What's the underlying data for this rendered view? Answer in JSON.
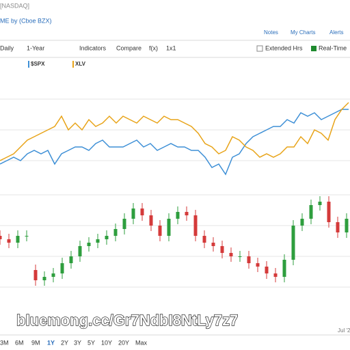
{
  "header": {
    "exchange": "[NASDAQ]",
    "source": "ME by (Cboe BZX)",
    "links": [
      "Notes",
      "My Charts",
      "Alerts"
    ]
  },
  "toolbar": {
    "items": [
      "Daily",
      "1-Year",
      "Indicators",
      "Compare",
      "f(x)",
      "1x1"
    ],
    "extended": "Extended Hrs",
    "realtime": "Real-Time"
  },
  "chart_data": [
    {
      "type": "line",
      "ylim": [
        0,
        120
      ],
      "series": [
        {
          "name": "$SPX",
          "color": "#3d8fd6",
          "values": [
            25,
            30,
            35,
            30,
            40,
            45,
            40,
            45,
            25,
            40,
            45,
            50,
            50,
            45,
            55,
            60,
            50,
            50,
            50,
            55,
            60,
            50,
            55,
            45,
            50,
            55,
            50,
            50,
            45,
            45,
            35,
            20,
            25,
            10,
            35,
            40,
            55,
            65,
            70,
            75,
            80,
            80,
            90,
            85,
            100,
            95,
            100,
            90,
            95,
            100,
            105,
            105
          ]
        },
        {
          "name": "XLV",
          "color": "#e8a317",
          "values": [
            30,
            35,
            40,
            50,
            60,
            65,
            70,
            75,
            80,
            95,
            75,
            85,
            75,
            90,
            80,
            85,
            95,
            85,
            95,
            90,
            85,
            95,
            90,
            85,
            95,
            90,
            90,
            85,
            80,
            70,
            55,
            50,
            40,
            45,
            65,
            60,
            50,
            45,
            35,
            40,
            35,
            40,
            50,
            50,
            65,
            55,
            75,
            70,
            60,
            90,
            105,
            115
          ]
        }
      ]
    },
    {
      "type": "candlestick",
      "ylim": [
        0,
        175
      ],
      "up_color": "#2e9e3e",
      "down_color": "#d43a3a",
      "open": [
        100,
        95,
        90,
        100,
        50,
        35,
        40,
        45,
        60,
        70,
        85,
        90,
        95,
        100,
        110,
        125,
        140,
        130,
        115,
        100,
        125,
        135,
        130,
        100,
        90,
        85,
        75,
        70,
        70,
        60,
        55,
        45,
        40,
        65,
        115,
        125,
        145,
        150,
        120,
        105
      ],
      "high": [
        108,
        103,
        108,
        108,
        58,
        48,
        53,
        68,
        78,
        93,
        98,
        103,
        108,
        118,
        133,
        148,
        148,
        138,
        123,
        133,
        143,
        143,
        138,
        108,
        98,
        93,
        83,
        78,
        78,
        68,
        63,
        53,
        73,
        123,
        133,
        153,
        158,
        158,
        128,
        133
      ],
      "low": [
        87,
        82,
        82,
        92,
        27,
        27,
        32,
        37,
        52,
        62,
        77,
        82,
        87,
        92,
        102,
        117,
        122,
        107,
        92,
        92,
        117,
        122,
        92,
        82,
        77,
        67,
        62,
        62,
        52,
        47,
        37,
        32,
        32,
        57,
        107,
        117,
        137,
        112,
        97,
        97
      ],
      "close": [
        95,
        90,
        100,
        100,
        35,
        40,
        45,
        60,
        70,
        85,
        90,
        95,
        100,
        110,
        125,
        140,
        130,
        115,
        100,
        125,
        135,
        130,
        100,
        90,
        85,
        75,
        70,
        70,
        60,
        55,
        45,
        40,
        65,
        115,
        125,
        145,
        150,
        120,
        105,
        125
      ]
    }
  ],
  "x_label": "Jul '2",
  "ranges": [
    "3M",
    "6M",
    "9M",
    "1Y",
    "2Y",
    "3Y",
    "5Y",
    "10Y",
    "20Y",
    "Max"
  ],
  "active_range": "1Y",
  "watermark": "bluemong.cc/Gr7NdbI8NtLy7z7"
}
